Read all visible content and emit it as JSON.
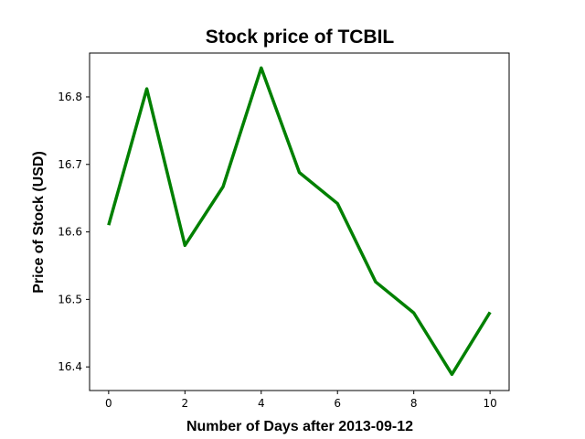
{
  "chart_data": {
    "type": "line",
    "title": "Stock price of TCBIL",
    "xlabel": "Number of Days after 2013-09-12",
    "ylabel": "Price of Stock (USD)",
    "xlim": [
      -0.5,
      10.5
    ],
    "ylim": [
      16.365,
      16.865
    ],
    "xticks": [
      0,
      2,
      4,
      6,
      8,
      10
    ],
    "yticks": [
      16.4,
      16.5,
      16.6,
      16.7,
      16.8
    ],
    "grid": false,
    "series": [
      {
        "color": "#008000",
        "x": [
          0,
          1,
          2,
          3,
          4,
          5,
          6,
          7,
          8,
          9,
          10
        ],
        "y": [
          16.61,
          16.812,
          16.58,
          16.667,
          16.843,
          16.688,
          16.642,
          16.526,
          16.48,
          16.389,
          16.481
        ]
      }
    ]
  }
}
